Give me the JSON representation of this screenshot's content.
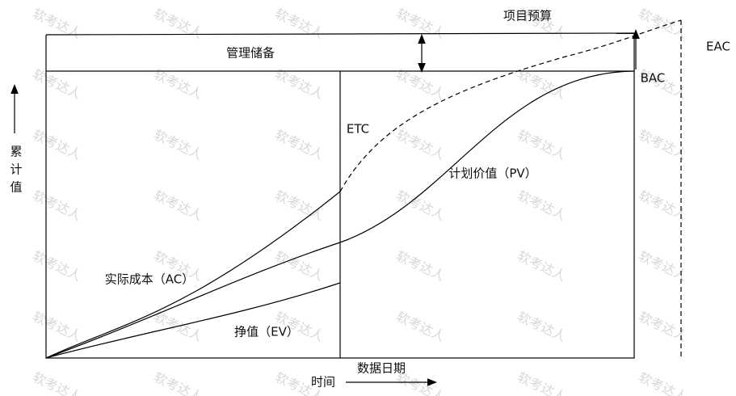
{
  "title_budget": "项目预算",
  "eac": "EAC",
  "reserve": "管理储备",
  "bac": "BAC",
  "etc": "ETC",
  "pv": "计划价值（PV）",
  "ac": "实际成本（AC）",
  "ev": "挣值（EV）",
  "data_date": "数据日期",
  "time": "时间",
  "y_label": [
    "累",
    "计",
    "值"
  ],
  "watermark": "软考达人"
}
